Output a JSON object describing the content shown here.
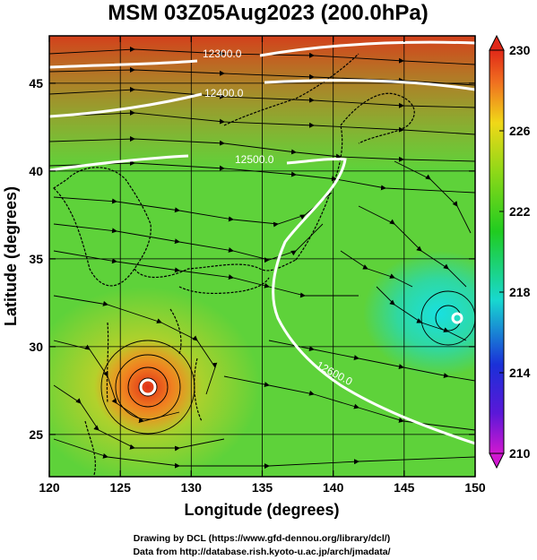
{
  "title": "MSM 03Z05Aug2023 (200.0hPa)",
  "xaxis": {
    "label": "Longitude (degrees)",
    "ticks": [
      "120",
      "125",
      "130",
      "135",
      "140",
      "145",
      "150"
    ],
    "range": [
      120,
      150
    ]
  },
  "yaxis": {
    "label": "Latitude  (degrees)",
    "ticks": [
      "25",
      "30",
      "35",
      "40",
      "45"
    ],
    "range": [
      22.5,
      47.6
    ]
  },
  "colorbar": {
    "ticks": [
      "230",
      "226",
      "222",
      "218",
      "214",
      "210"
    ],
    "range": [
      210,
      230
    ]
  },
  "contours": [
    {
      "label": "12300.0"
    },
    {
      "label": "12400.0"
    },
    {
      "label": "12500.0"
    },
    {
      "label": "12600.0"
    }
  ],
  "footer": {
    "line1": "Drawing by DCL (https://www.gfd-dennou.org/library/dcl/)",
    "line2": "Data from http://database.rish.kyoto-u.ac.jp/arch/jmadata/"
  },
  "colors": {
    "hot": "#e53018",
    "warm": "#f0d020",
    "mid": "#22c81a",
    "cool": "#18d8c8",
    "cold": "#1a28d0",
    "min": "#d018d0"
  }
}
